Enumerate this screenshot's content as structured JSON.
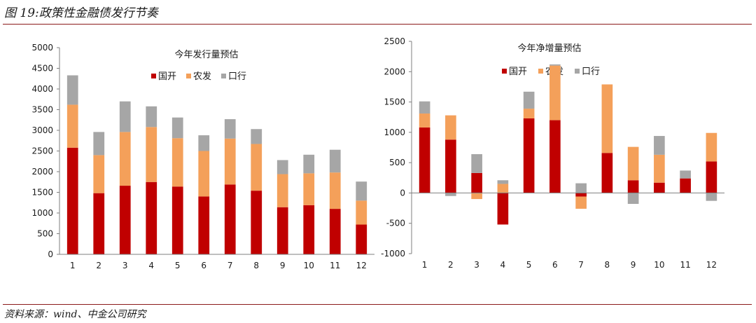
{
  "figure": {
    "title": "图 19:政策性金融债发行节奏",
    "source": "资料来源：wind、中金公司研究"
  },
  "colors": {
    "国开": "#c00000",
    "农发": "#f4a05a",
    "口行": "#a6a6a6",
    "rule": "#8b1a1a"
  },
  "chart_data": [
    {
      "type": "bar",
      "stacked": true,
      "title": "今年发行量预估",
      "categories": [
        "1",
        "2",
        "3",
        "4",
        "5",
        "6",
        "7",
        "8",
        "9",
        "10",
        "11",
        "12"
      ],
      "ylim": [
        0,
        5000
      ],
      "yticks": [
        0,
        500,
        1000,
        1500,
        2000,
        2500,
        3000,
        3500,
        4000,
        4500,
        5000
      ],
      "legend_position": "top-center",
      "grid": false,
      "series": [
        {
          "name": "国开",
          "color": "#c00000",
          "values": [
            2580,
            1480,
            1660,
            1750,
            1640,
            1400,
            1690,
            1540,
            1140,
            1190,
            1100,
            720
          ]
        },
        {
          "name": "农发",
          "color": "#f4a05a",
          "values": [
            1040,
            920,
            1300,
            1330,
            1170,
            1100,
            1110,
            1130,
            800,
            770,
            880,
            580
          ]
        },
        {
          "name": "口行",
          "color": "#a6a6a6",
          "values": [
            710,
            560,
            740,
            500,
            500,
            380,
            470,
            360,
            340,
            450,
            550,
            460
          ]
        }
      ]
    },
    {
      "type": "bar",
      "stacked": true,
      "title": "今年净增量预估",
      "categories": [
        "1",
        "2",
        "3",
        "4",
        "5",
        "6",
        "7",
        "8",
        "9",
        "10",
        "11",
        "12"
      ],
      "ylim": [
        -1000,
        2500
      ],
      "yticks": [
        -1000,
        -500,
        0,
        500,
        1000,
        1500,
        2000,
        2500
      ],
      "legend_position": "top-center",
      "grid": false,
      "series": [
        {
          "name": "国开",
          "color": "#c00000",
          "values": [
            1080,
            880,
            330,
            -520,
            1230,
            1200,
            -60,
            660,
            210,
            170,
            240,
            520
          ]
        },
        {
          "name": "农发",
          "color": "#f4a05a",
          "values": [
            230,
            400,
            -100,
            150,
            160,
            900,
            -200,
            1130,
            550,
            460,
            0,
            470
          ]
        },
        {
          "name": "口行",
          "color": "#a6a6a6",
          "values": [
            200,
            -50,
            310,
            60,
            280,
            20,
            160,
            0,
            -180,
            310,
            130,
            -130
          ]
        }
      ]
    }
  ]
}
